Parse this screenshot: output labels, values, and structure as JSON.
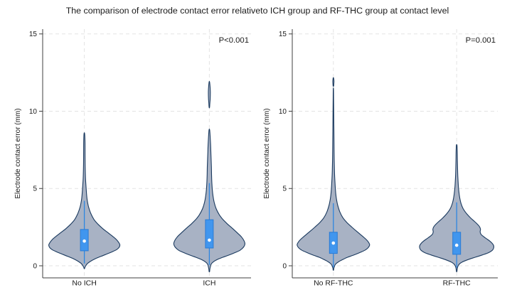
{
  "chart_data": {
    "type": "violin",
    "title": "The comparison of electrode contact error relativeto ICH group and RF-THC group at contact level",
    "ylabel": "Electrode contact error (mm)",
    "yticks": [
      0,
      5,
      10,
      15
    ],
    "ylim": [
      -0.8,
      15.4
    ],
    "grid": "dashed",
    "profile_format": "[value_mm, halfwidth_px]",
    "colors": {
      "violin_fill": "#a8b2c4",
      "violin_stroke": "#1b3a5f",
      "box_fill": "#4196ee",
      "box_stroke": "#2a7bd4",
      "whisker": "#2e86e0",
      "median_dot": "#ffffff",
      "grid": "#e3e3e3",
      "axis": "#3f3f3f",
      "text": "#1a1a1a"
    },
    "panels": [
      {
        "p_label": "P<0.001",
        "groups": [
          {
            "label": "No ICH",
            "box": {
              "q1": 0.97,
              "q3": 2.35,
              "mean": 1.6,
              "whisker_low": 0.15,
              "whisker_high": 4.2
            },
            "violin": [
              [
                8.55,
                0.4
              ],
              [
                8.1,
                0.9
              ],
              [
                7.5,
                1.0
              ],
              [
                6.8,
                1.1
              ],
              [
                6.2,
                1.3
              ],
              [
                5.6,
                1.7
              ],
              [
                5.1,
                2.4
              ],
              [
                4.6,
                3.2
              ],
              [
                4.2,
                4.2
              ],
              [
                3.8,
                6
              ],
              [
                3.4,
                9
              ],
              [
                3.0,
                13.5
              ],
              [
                2.7,
                19
              ],
              [
                2.4,
                26
              ],
              [
                2.15,
                33
              ],
              [
                1.9,
                40
              ],
              [
                1.7,
                45
              ],
              [
                1.5,
                48.5
              ],
              [
                1.35,
                50
              ],
              [
                1.2,
                49
              ],
              [
                1.05,
                45.5
              ],
              [
                0.9,
                39
              ],
              [
                0.75,
                31
              ],
              [
                0.6,
                23
              ],
              [
                0.45,
                15
              ],
              [
                0.3,
                9
              ],
              [
                0.15,
                4.5
              ],
              [
                0.0,
                2.0
              ],
              [
                -0.1,
                0.8
              ],
              [
                -0.18,
                0.3
              ]
            ],
            "islands": []
          },
          {
            "label": "ICH",
            "box": {
              "q1": 1.15,
              "q3": 2.98,
              "mean": 1.66,
              "whisker_low": 0.05,
              "whisker_high": 5.35
            },
            "violin": [
              [
                8.8,
                0.4
              ],
              [
                8.4,
                1.1
              ],
              [
                7.9,
                1.7
              ],
              [
                7.4,
                2.1
              ],
              [
                6.9,
                2.5
              ],
              [
                6.4,
                2.9
              ],
              [
                5.9,
                3.1
              ],
              [
                5.4,
                3.5
              ],
              [
                4.9,
                4.2
              ],
              [
                4.5,
                5.2
              ],
              [
                4.1,
                6.8
              ],
              [
                3.7,
                9.5
              ],
              [
                3.3,
                14
              ],
              [
                3.0,
                19
              ],
              [
                2.7,
                25.5
              ],
              [
                2.4,
                33
              ],
              [
                2.1,
                40
              ],
              [
                1.85,
                45.5
              ],
              [
                1.6,
                49
              ],
              [
                1.4,
                50
              ],
              [
                1.2,
                48
              ],
              [
                1.0,
                43
              ],
              [
                0.85,
                36
              ],
              [
                0.7,
                28
              ],
              [
                0.55,
                19
              ],
              [
                0.4,
                11
              ],
              [
                0.25,
                5.5
              ],
              [
                0.1,
                2.5
              ],
              [
                -0.1,
                1.2
              ],
              [
                -0.25,
                0.6
              ],
              [
                -0.38,
                0.3
              ]
            ],
            "islands": [
              [
                [
                  11.9,
                  0.3
                ],
                [
                  11.6,
                  1.0
                ],
                [
                  11.2,
                  1.4
                ],
                [
                  10.8,
                  1.2
                ],
                [
                  10.5,
                  0.7
                ],
                [
                  10.25,
                  0.3
                ]
              ]
            ]
          }
        ]
      },
      {
        "p_label": "P=0.001",
        "groups": [
          {
            "label": "No RF-THC",
            "box": {
              "q1": 0.8,
              "q3": 2.17,
              "mean": 1.47,
              "whisker_low": -0.1,
              "whisker_high": 4.05
            },
            "violin": [
              [
                11.4,
                0.2
              ],
              [
                10.5,
                0.4
              ],
              [
                9.5,
                0.6
              ],
              [
                8.5,
                0.8
              ],
              [
                7.5,
                1.0
              ],
              [
                6.8,
                1.2
              ],
              [
                6.2,
                1.5
              ],
              [
                5.7,
                1.9
              ],
              [
                5.2,
                2.5
              ],
              [
                4.7,
                3.3
              ],
              [
                4.3,
                4.4
              ],
              [
                3.9,
                6.2
              ],
              [
                3.5,
                9
              ],
              [
                3.1,
                13.5
              ],
              [
                2.8,
                19
              ],
              [
                2.5,
                26
              ],
              [
                2.2,
                33.5
              ],
              [
                1.95,
                40
              ],
              [
                1.75,
                45
              ],
              [
                1.55,
                49
              ],
              [
                1.35,
                51
              ],
              [
                1.15,
                48.5
              ],
              [
                1.0,
                44
              ],
              [
                0.85,
                37
              ],
              [
                0.7,
                29
              ],
              [
                0.55,
                20
              ],
              [
                0.4,
                13
              ],
              [
                0.25,
                7
              ],
              [
                0.1,
                3
              ],
              [
                -0.08,
                1.2
              ],
              [
                -0.2,
                0.5
              ],
              [
                -0.28,
                0.3
              ]
            ],
            "islands": [
              [
                [
                  12.15,
                  0.3
                ],
                [
                  11.95,
                  0.8
                ],
                [
                  11.75,
                  0.6
                ],
                [
                  11.62,
                  0.3
                ]
              ]
            ]
          },
          {
            "label": "RF-THC",
            "box": {
              "q1": 0.74,
              "q3": 2.17,
              "mean": 1.33,
              "whisker_low": -0.12,
              "whisker_high": 4.1
            },
            "violin": [
              [
                7.8,
                0.4
              ],
              [
                7.4,
                0.8
              ],
              [
                6.8,
                1.0
              ],
              [
                6.2,
                1.3
              ],
              [
                5.7,
                1.7
              ],
              [
                5.2,
                2.3
              ],
              [
                4.8,
                3.1
              ],
              [
                4.4,
                4.3
              ],
              [
                4.05,
                6
              ],
              [
                3.7,
                9
              ],
              [
                3.4,
                13.5
              ],
              [
                3.1,
                19.5
              ],
              [
                2.85,
                25.5
              ],
              [
                2.65,
                30
              ],
              [
                2.5,
                32.5
              ],
              [
                2.35,
                33.5
              ],
              [
                2.2,
                33
              ],
              [
                2.05,
                34
              ],
              [
                1.9,
                37.5
              ],
              [
                1.75,
                42
              ],
              [
                1.6,
                46.5
              ],
              [
                1.45,
                50
              ],
              [
                1.3,
                52
              ],
              [
                1.15,
                52
              ],
              [
                1.0,
                50
              ],
              [
                0.85,
                45
              ],
              [
                0.7,
                36
              ],
              [
                0.55,
                26
              ],
              [
                0.4,
                16
              ],
              [
                0.25,
                8
              ],
              [
                0.1,
                3.5
              ],
              [
                -0.05,
                1.6
              ],
              [
                -0.2,
                0.8
              ],
              [
                -0.37,
                0.3
              ]
            ],
            "islands": []
          }
        ]
      }
    ]
  }
}
